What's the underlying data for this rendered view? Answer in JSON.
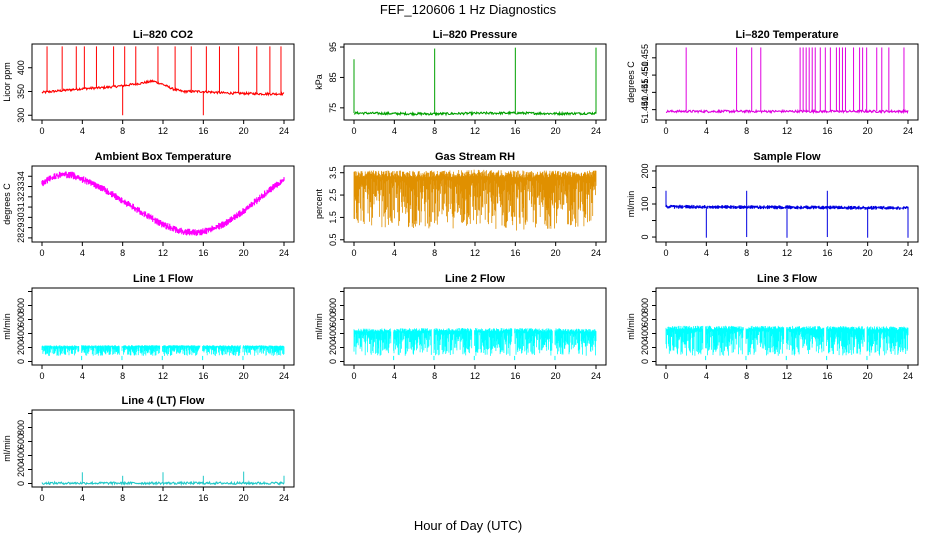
{
  "figure": {
    "title": "FEF_120606  1 Hz Diagnostics",
    "xlabel": "Hour of Day (UTC)"
  },
  "chart_data": [
    {
      "type": "line",
      "title": "Li–820 CO2",
      "xlabel": "",
      "ylabel": "Licor ppm",
      "color": "#ff0000",
      "xlim": [
        0,
        24
      ],
      "ylim": [
        290,
        450
      ],
      "xticks": [
        0,
        4,
        8,
        12,
        16,
        20,
        24
      ],
      "yticks": [
        300,
        350,
        400
      ],
      "baseline": [
        [
          0,
          348
        ],
        [
          2,
          352
        ],
        [
          4,
          356
        ],
        [
          6,
          358
        ],
        [
          8,
          362
        ],
        [
          10,
          368
        ],
        [
          11,
          372
        ],
        [
          12,
          365
        ],
        [
          13,
          355
        ],
        [
          14,
          350
        ],
        [
          16,
          350
        ],
        [
          18,
          347
        ],
        [
          20,
          346
        ],
        [
          22,
          345
        ],
        [
          24,
          345
        ]
      ],
      "spikes": [
        [
          0.5,
          445
        ],
        [
          2,
          445
        ],
        [
          3.4,
          445
        ],
        [
          4.2,
          445
        ],
        [
          5.4,
          445
        ],
        [
          7.1,
          445
        ],
        [
          8.2,
          445
        ],
        [
          8,
          300
        ],
        [
          9.3,
          445
        ],
        [
          11.5,
          445
        ],
        [
          13.2,
          445
        ],
        [
          14.8,
          445
        ],
        [
          16,
          300
        ],
        [
          16.3,
          445
        ],
        [
          17.6,
          445
        ],
        [
          19.5,
          445
        ],
        [
          21.3,
          445
        ],
        [
          22.6,
          445
        ],
        [
          23.7,
          445
        ]
      ]
    },
    {
      "type": "line",
      "title": "Li–820 Pressure",
      "xlabel": "",
      "ylabel": "kPa",
      "color": "#00a000",
      "xlim": [
        0,
        24
      ],
      "ylim": [
        71,
        96
      ],
      "xticks": [
        0,
        4,
        8,
        12,
        16,
        20,
        24
      ],
      "yticks": [
        75,
        85,
        95
      ],
      "baseline": [
        [
          0,
          73.3
        ],
        [
          4,
          73.1
        ],
        [
          8,
          73.0
        ],
        [
          12,
          73.2
        ],
        [
          16,
          73.3
        ],
        [
          20,
          73.1
        ],
        [
          24,
          73.2
        ]
      ],
      "spikes": [
        [
          0,
          91
        ],
        [
          8,
          94.5
        ],
        [
          16,
          94.8
        ],
        [
          24,
          94.8
        ]
      ]
    },
    {
      "type": "line",
      "title": "Li–820 Temperature",
      "xlabel": "",
      "ylabel": "degrees C",
      "color": "#e000e0",
      "xlim": [
        0,
        24
      ],
      "ylim": [
        51.437,
        51.459
      ],
      "xticks": [
        0,
        4,
        8,
        12,
        16,
        20,
        24
      ],
      "yticks": [
        51.44,
        51.445,
        51.45,
        51.455
      ],
      "yticklabels": [
        "51.440",
        "51.445",
        "51.450",
        "51.455"
      ],
      "baseline": [
        [
          0,
          51.4395
        ],
        [
          24,
          51.4395
        ]
      ],
      "spikes": [
        [
          2,
          51.458
        ],
        [
          7,
          51.458
        ],
        [
          8.5,
          51.458
        ],
        [
          9.4,
          51.458
        ],
        [
          13.3,
          51.458
        ],
        [
          13.6,
          51.458
        ],
        [
          13.9,
          51.458
        ],
        [
          14.2,
          51.458
        ],
        [
          14.5,
          51.458
        ],
        [
          14.8,
          51.458
        ],
        [
          15.3,
          51.458
        ],
        [
          15.8,
          51.458
        ],
        [
          16.3,
          51.458
        ],
        [
          16.9,
          51.458
        ],
        [
          17.2,
          51.458
        ],
        [
          17.5,
          51.458
        ],
        [
          17.8,
          51.458
        ],
        [
          18.6,
          51.458
        ],
        [
          19.2,
          51.458
        ],
        [
          19.5,
          51.458
        ],
        [
          19.9,
          51.458
        ],
        [
          20.9,
          51.458
        ],
        [
          21.4,
          51.458
        ],
        [
          22.1,
          51.458
        ],
        [
          23.6,
          51.458
        ]
      ]
    },
    {
      "type": "line",
      "title": "Ambient Box Temperature",
      "xlabel": "",
      "ylabel": "degrees C",
      "color": "#ff00ff",
      "xlim": [
        0,
        24
      ],
      "ylim": [
        27.6,
        35
      ],
      "xticks": [
        0,
        4,
        8,
        12,
        16,
        20,
        24
      ],
      "yticks": [
        28,
        29,
        30,
        31,
        32,
        33,
        34
      ],
      "baseline": [
        [
          0,
          33.3
        ],
        [
          1,
          33.9
        ],
        [
          2,
          34.2
        ],
        [
          3,
          34.1
        ],
        [
          4,
          33.7
        ],
        [
          6,
          32.8
        ],
        [
          8,
          31.6
        ],
        [
          10,
          30.4
        ],
        [
          12,
          29.3
        ],
        [
          13,
          28.9
        ],
        [
          14,
          28.6
        ],
        [
          15,
          28.5
        ],
        [
          16,
          28.6
        ],
        [
          18,
          29.3
        ],
        [
          20,
          30.6
        ],
        [
          22,
          32.2
        ],
        [
          23,
          33.0
        ],
        [
          24,
          33.6
        ]
      ],
      "noise": 0.35
    },
    {
      "type": "line",
      "title": "Gas Stream RH",
      "xlabel": "",
      "ylabel": "percent",
      "color": "#e09000",
      "xlim": [
        0,
        24
      ],
      "ylim": [
        0.4,
        3.8
      ],
      "xticks": [
        0,
        4,
        8,
        12,
        16,
        20,
        24
      ],
      "yticks": [
        0.5,
        1.5,
        2.5,
        3.5
      ],
      "yticklabels": [
        "0.5",
        "1.5",
        "2.5",
        "3.5"
      ],
      "band": [
        [
          0,
          1.2,
          3.6
        ],
        [
          4,
          1.0,
          3.6
        ],
        [
          8,
          1.0,
          3.6
        ],
        [
          12,
          1.0,
          3.65
        ],
        [
          16,
          0.9,
          3.6
        ],
        [
          20,
          1.0,
          3.6
        ],
        [
          24,
          1.1,
          3.6
        ]
      ]
    },
    {
      "type": "line",
      "title": "Sample Flow",
      "xlabel": "",
      "ylabel": "ml/min",
      "color": "#0000e0",
      "xlim": [
        0,
        24
      ],
      "ylim": [
        -15,
        215
      ],
      "xticks": [
        0,
        4,
        8,
        12,
        16,
        20,
        24
      ],
      "yticks": [
        0,
        50,
        100,
        150,
        200
      ],
      "yticklabels": [
        "0",
        "",
        "100",
        "",
        "200"
      ],
      "baseline": [
        [
          0,
          92
        ],
        [
          24,
          88
        ]
      ],
      "noise": 6,
      "spikes": [
        [
          0,
          140
        ],
        [
          4,
          -2
        ],
        [
          8,
          140
        ],
        [
          8,
          0
        ],
        [
          12,
          -2
        ],
        [
          16,
          140
        ],
        [
          16,
          0
        ],
        [
          20,
          -2
        ],
        [
          24,
          -2
        ]
      ]
    },
    {
      "type": "line",
      "title": "Line 1 Flow",
      "xlabel": "",
      "ylabel": "ml/min",
      "color": "#00ffff",
      "xlim": [
        0,
        24
      ],
      "ylim": [
        -50,
        1050
      ],
      "xticks": [
        0,
        4,
        8,
        12,
        16,
        20,
        24
      ],
      "yticks": [
        0,
        200,
        400,
        600,
        800,
        1000
      ],
      "yticklabels": [
        "0",
        "200",
        "400",
        "600",
        "800",
        ""
      ],
      "band": [
        [
          0,
          80,
          230
        ],
        [
          12,
          80,
          235
        ],
        [
          24,
          80,
          230
        ]
      ],
      "gaps": [
        3.8,
        7.8,
        11.8,
        15.8,
        19.8
      ]
    },
    {
      "type": "line",
      "title": "Line 2 Flow",
      "xlabel": "",
      "ylabel": "ml/min",
      "color": "#00ffff",
      "xlim": [
        0,
        24
      ],
      "ylim": [
        -50,
        1050
      ],
      "xticks": [
        0,
        4,
        8,
        12,
        16,
        20,
        24
      ],
      "yticks": [
        0,
        200,
        400,
        600,
        800,
        1000
      ],
      "yticklabels": [
        "0",
        "200",
        "400",
        "600",
        "800",
        ""
      ],
      "band": [
        [
          0,
          80,
          470
        ],
        [
          12,
          80,
          480
        ],
        [
          24,
          80,
          470
        ]
      ],
      "gaps": [
        3.8,
        7.8,
        11.8,
        15.8,
        19.8
      ]
    },
    {
      "type": "line",
      "title": "Line 3 Flow",
      "xlabel": "",
      "ylabel": "ml/min",
      "color": "#00ffff",
      "xlim": [
        0,
        24
      ],
      "ylim": [
        -50,
        1050
      ],
      "xticks": [
        0,
        4,
        8,
        12,
        16,
        20,
        24
      ],
      "yticks": [
        0,
        200,
        400,
        600,
        800,
        1000
      ],
      "yticklabels": [
        "0",
        "200",
        "400",
        "600",
        "800",
        ""
      ],
      "band": [
        [
          0,
          80,
          510
        ],
        [
          12,
          80,
          510
        ],
        [
          24,
          80,
          500
        ]
      ],
      "gaps": [
        3.8,
        7.8,
        11.8,
        15.8,
        19.8
      ]
    },
    {
      "type": "line",
      "title": "Line 4 (LT) Flow",
      "xlabel": "",
      "ylabel": "ml/min",
      "color": "#20c8c8",
      "xlim": [
        0,
        24
      ],
      "ylim": [
        -50,
        1050
      ],
      "xticks": [
        0,
        4,
        8,
        12,
        16,
        20,
        24
      ],
      "yticks": [
        0,
        200,
        400,
        600,
        800,
        1000
      ],
      "yticklabels": [
        "0",
        "200",
        "400",
        "600",
        "800",
        ""
      ],
      "baseline": [
        [
          0,
          5
        ],
        [
          24,
          5
        ]
      ],
      "spikes": [
        [
          4,
          160
        ],
        [
          8,
          110
        ],
        [
          12,
          160
        ],
        [
          16,
          110
        ],
        [
          20,
          170
        ],
        [
          24,
          110
        ]
      ]
    }
  ]
}
